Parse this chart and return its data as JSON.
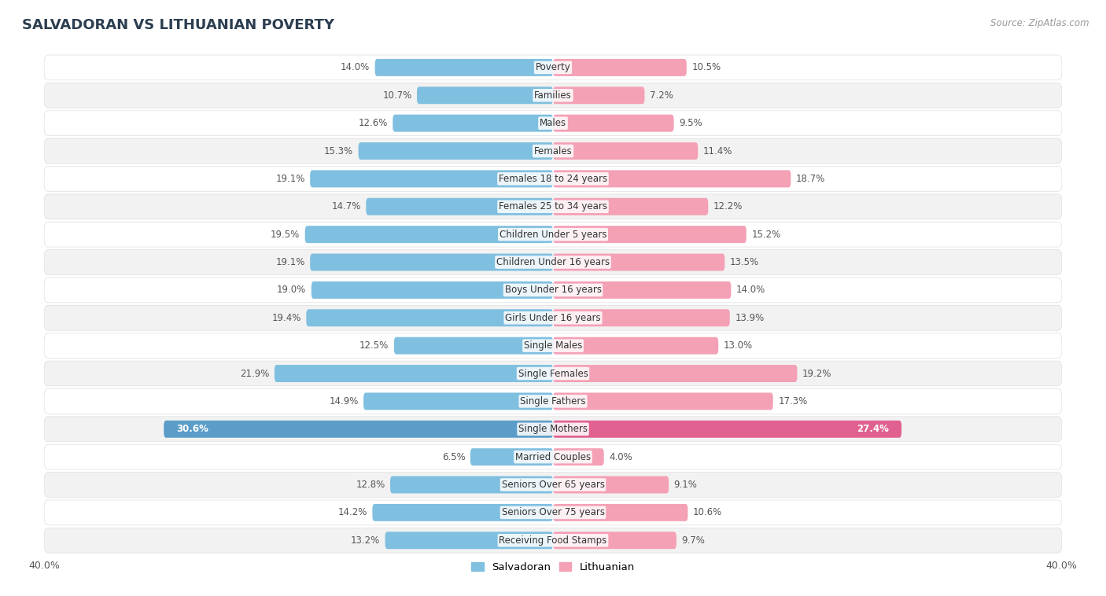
{
  "title": "SALVADORAN VS LITHUANIAN POVERTY",
  "source": "Source: ZipAtlas.com",
  "categories": [
    "Poverty",
    "Families",
    "Males",
    "Females",
    "Females 18 to 24 years",
    "Females 25 to 34 years",
    "Children Under 5 years",
    "Children Under 16 years",
    "Boys Under 16 years",
    "Girls Under 16 years",
    "Single Males",
    "Single Females",
    "Single Fathers",
    "Single Mothers",
    "Married Couples",
    "Seniors Over 65 years",
    "Seniors Over 75 years",
    "Receiving Food Stamps"
  ],
  "salvadoran": [
    14.0,
    10.7,
    12.6,
    15.3,
    19.1,
    14.7,
    19.5,
    19.1,
    19.0,
    19.4,
    12.5,
    21.9,
    14.9,
    30.6,
    6.5,
    12.8,
    14.2,
    13.2
  ],
  "lithuanian": [
    10.5,
    7.2,
    9.5,
    11.4,
    18.7,
    12.2,
    15.2,
    13.5,
    14.0,
    13.9,
    13.0,
    19.2,
    17.3,
    27.4,
    4.0,
    9.1,
    10.6,
    9.7
  ],
  "salvadoran_color": "#7fbfdf",
  "lithuanian_color": "#f4a0b5",
  "single_mothers_salv_color": "#5b9dc8",
  "single_mothers_lith_color": "#e06090",
  "row_bg_light": "#f2f2f2",
  "row_bg_white": "#ffffff",
  "fig_bg": "#ffffff",
  "label_color": "#555555",
  "single_mothers_label_color": "#ffffff",
  "title_color": "#2c3e50",
  "source_color": "#999999",
  "xlim": 40.0
}
